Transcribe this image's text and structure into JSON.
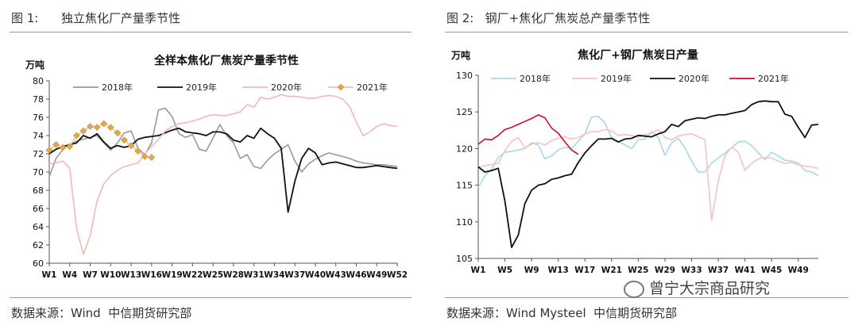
{
  "left_panel": {
    "figure_label": "图 1:      独立焦化厂产量季节性",
    "source": "数据来源：Wind  中信期货研究部"
  },
  "right_panel": {
    "figure_label": "图 2:   钢厂+焦化厂焦炭总产量季节性",
    "source": "数据来源：Wind Mysteel  中信期货研究部"
  },
  "watermark": "曾宁大宗商品研究",
  "chart_data": [
    {
      "type": "line",
      "title": "全样本焦化厂焦炭产量季节性",
      "unit_label": "万吨",
      "ylim": [
        60,
        80
      ],
      "yticks": [
        60,
        62,
        64,
        66,
        68,
        70,
        72,
        74,
        76,
        78,
        80
      ],
      "xlim": [
        1,
        52
      ],
      "xticks": [
        1,
        4,
        7,
        10,
        13,
        16,
        19,
        22,
        25,
        28,
        31,
        34,
        37,
        40,
        43,
        46,
        49,
        52
      ],
      "xtick_labels": [
        "W1",
        "W4",
        "W7",
        "W10",
        "W13",
        "W16",
        "W19",
        "W22",
        "W25",
        "W28",
        "W31",
        "W34",
        "W37",
        "W40",
        "W43",
        "W46",
        "W49",
        "W52"
      ],
      "grid": false,
      "legend": "top",
      "series": [
        {
          "name": "2018年",
          "color": "#999999",
          "markers": false,
          "values": [
            69.5,
            71.5,
            72.5,
            73.0,
            73.4,
            73.6,
            73.8,
            74.0,
            73.2,
            72.4,
            73.2,
            74.3,
            74.5,
            72.6,
            71.9,
            73.2,
            76.8,
            77.0,
            76.1,
            74.2,
            73.8,
            74.1,
            72.5,
            72.3,
            73.7,
            75.2,
            74.0,
            73.2,
            71.5,
            71.9,
            70.6,
            70.4,
            71.3,
            72.0,
            72.5,
            73.0,
            71.2,
            70.0,
            70.9,
            71.4,
            71.8,
            72.1,
            71.9,
            71.7,
            71.5,
            71.2,
            71.0,
            70.9,
            70.8,
            70.8,
            70.7,
            70.6
          ]
        },
        {
          "name": "2019年",
          "color": "#111111",
          "markers": false,
          "values": [
            72.0,
            72.5,
            72.8,
            73.0,
            73.2,
            74.0,
            73.7,
            74.2,
            73.3,
            72.6,
            72.9,
            72.7,
            72.9,
            73.6,
            73.8,
            73.9,
            74.0,
            74.3,
            74.6,
            74.8,
            74.4,
            74.3,
            74.2,
            74.0,
            74.4,
            74.4,
            74.2,
            73.5,
            73.3,
            74.0,
            73.7,
            74.8,
            74.2,
            73.7,
            72.6,
            65.6,
            69.0,
            71.5,
            72.6,
            72.1,
            70.8,
            71.0,
            71.1,
            70.9,
            70.7,
            70.5,
            70.5,
            70.6,
            70.7,
            70.6,
            70.5,
            70.4
          ]
        },
        {
          "name": "2020年",
          "color": "#f2b8b8",
          "markers": false,
          "values": [
            70.9,
            71.0,
            71.2,
            70.4,
            63.8,
            61.0,
            63.0,
            66.8,
            68.7,
            69.6,
            70.2,
            70.6,
            70.8,
            71.0,
            72.0,
            72.8,
            73.6,
            74.5,
            75.0,
            75.3,
            75.4,
            75.6,
            75.8,
            76.1,
            76.3,
            76.2,
            76.2,
            76.4,
            76.6,
            77.4,
            77.1,
            78.2,
            78.0,
            78.2,
            78.5,
            78.3,
            78.3,
            78.2,
            78.1,
            78.1,
            78.3,
            78.4,
            78.3,
            78.0,
            77.2,
            75.5,
            74.0,
            74.4,
            75.0,
            75.3,
            75.1,
            75.0
          ]
        },
        {
          "name": "2021年",
          "color": "#e9c3a8",
          "marker_color": "#f5a623",
          "markers": true,
          "values": [
            72.4,
            73.0,
            72.7,
            72.8,
            74.0,
            74.5,
            75.0,
            74.9,
            75.3,
            74.9,
            74.3,
            73.5,
            72.9,
            72.3,
            71.7,
            71.6
          ]
        }
      ]
    },
    {
      "type": "line",
      "title": "焦化厂+钢厂焦炭日产量",
      "unit_label": "万吨",
      "ylim": [
        105,
        130
      ],
      "yticks": [
        105,
        110,
        115,
        120,
        125,
        130
      ],
      "xlim": [
        1,
        52
      ],
      "xticks": [
        1,
        5,
        9,
        13,
        17,
        21,
        25,
        29,
        33,
        37,
        41,
        45,
        49
      ],
      "xtick_labels": [
        "W1",
        "W5",
        "W9",
        "W13",
        "W17",
        "W21",
        "W25",
        "W29",
        "W33",
        "W37",
        "W41",
        "W45",
        "W49"
      ],
      "grid": false,
      "legend": "top",
      "series": [
        {
          "name": "2018年",
          "color": "#a6d8ec",
          "values": [
            114.7,
            116.3,
            117.2,
            118.8,
            119.5,
            119.6,
            119.8,
            120.0,
            120.8,
            120.5,
            118.6,
            119.0,
            119.8,
            120.2,
            120.0,
            121.0,
            122.0,
            124.3,
            124.4,
            123.5,
            121.5,
            121.0,
            120.5,
            120.0,
            121.2,
            121.3,
            122.3,
            121.5,
            119.1,
            120.8,
            121.4,
            120.1,
            118.3,
            116.8,
            116.8,
            118.0,
            118.7,
            119.4,
            120.1,
            120.9,
            121.0,
            120.4,
            119.4,
            118.5,
            119.5,
            119.0,
            118.4,
            118.3,
            118.0,
            117.0,
            116.8,
            116.3
          ]
        },
        {
          "name": "2019年",
          "color": "#f4c2c2",
          "values": [
            117.4,
            117.7,
            117.8,
            118.0,
            119.7,
            121.0,
            121.5,
            120.1,
            120.6,
            120.8,
            120.5,
            121.1,
            121.4,
            121.6,
            121.3,
            121.5,
            122.0,
            122.3,
            122.3,
            122.6,
            122.4,
            121.8,
            121.9,
            121.8,
            121.5,
            121.9,
            122.1,
            122.6,
            121.5,
            121.2,
            121.7,
            121.9,
            122.0,
            121.6,
            121.2,
            110.2,
            115.5,
            119.0,
            120.2,
            119.5,
            117.0,
            118.0,
            118.6,
            118.8,
            118.7,
            118.3,
            118.0,
            118.1,
            117.8,
            117.6,
            117.5,
            117.3
          ]
        },
        {
          "name": "2020年",
          "color": "#111111",
          "values": [
            117.5,
            116.8,
            117.0,
            117.3,
            112.8,
            106.5,
            108.2,
            112.5,
            114.3,
            115.0,
            115.2,
            115.8,
            116.0,
            116.3,
            116.5,
            118.1,
            119.4,
            120.4,
            121.3,
            121.3,
            121.4,
            120.9,
            121.3,
            121.4,
            121.8,
            121.7,
            121.6,
            122.0,
            122.3,
            123.3,
            123.0,
            123.8,
            124.0,
            124.2,
            124.1,
            124.4,
            124.6,
            124.6,
            124.8,
            125.0,
            125.2,
            126.0,
            126.4,
            126.5,
            126.4,
            126.4,
            124.7,
            124.4,
            122.9,
            121.5,
            123.2,
            123.3
          ]
        },
        {
          "name": "2021年",
          "color": "#c8102e",
          "values": [
            120.6,
            121.3,
            121.2,
            121.8,
            122.6,
            122.9,
            123.3,
            123.7,
            124.1,
            124.6,
            124.2,
            122.8,
            122.1,
            120.9,
            119.8,
            119.2
          ]
        }
      ]
    }
  ]
}
